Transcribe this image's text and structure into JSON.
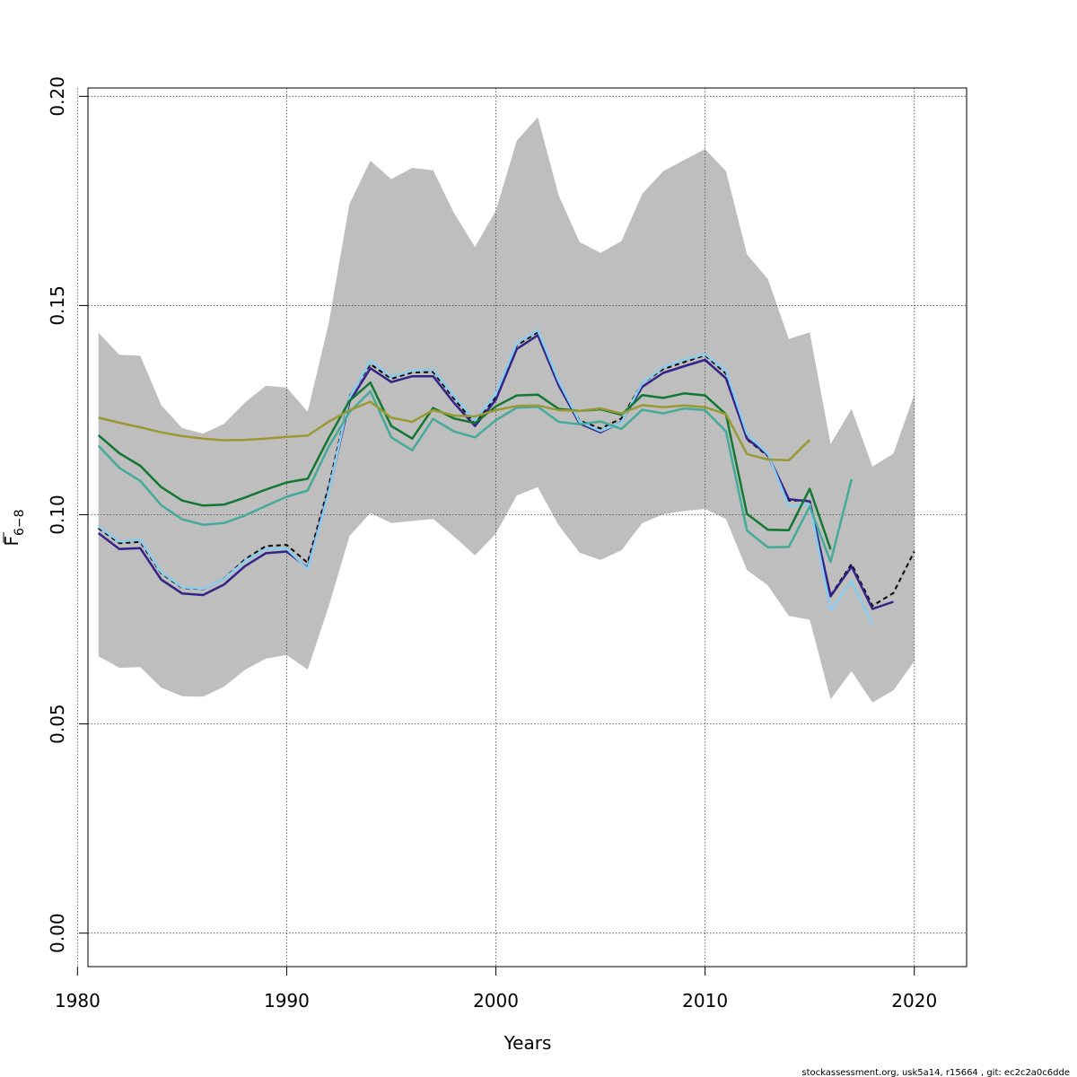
{
  "chart_data": {
    "type": "line",
    "xlabel": "Years",
    "ylabel": {
      "base": "F",
      "subscript": "6−8"
    },
    "xlim": [
      1980.5,
      2022.5
    ],
    "ylim": [
      -0.008,
      0.202
    ],
    "xticks": [
      1980,
      1990,
      2000,
      2010,
      2020
    ],
    "yticks": [
      0.0,
      0.05,
      0.1,
      0.15,
      0.2
    ],
    "xtick_labels": [
      "1980",
      "1990",
      "2000",
      "2010",
      "2020"
    ],
    "ytick_labels": [
      "0.00",
      "0.05",
      "0.10",
      "0.15",
      "0.20"
    ],
    "grid": "dotted",
    "confidence_band": {
      "color": "#bebebe",
      "x": [
        1981,
        1982,
        1983,
        1984,
        1985,
        1986,
        1987,
        1988,
        1989,
        1990,
        1991,
        1992,
        1993,
        1994,
        1995,
        1996,
        1997,
        1998,
        1999,
        2000,
        2001,
        2002,
        2003,
        2004,
        2005,
        2006,
        2007,
        2008,
        2009,
        2010,
        2011,
        2012,
        2013,
        2014,
        2015,
        2016,
        2017,
        2018,
        2019,
        2020
      ],
      "upper": [
        0.1435,
        0.1382,
        0.138,
        0.1262,
        0.1207,
        0.1194,
        0.1217,
        0.1268,
        0.1308,
        0.1304,
        0.1246,
        0.1456,
        0.1743,
        0.1846,
        0.1802,
        0.1829,
        0.1823,
        0.1721,
        0.164,
        0.1727,
        0.1894,
        0.195,
        0.1763,
        0.1652,
        0.1626,
        0.1654,
        0.1767,
        0.1821,
        0.1848,
        0.1874,
        0.1821,
        0.1622,
        0.1563,
        0.142,
        0.1436,
        0.1169,
        0.1253,
        0.1115,
        0.1146,
        0.1287
      ],
      "lower": [
        0.0662,
        0.0634,
        0.0636,
        0.0587,
        0.0566,
        0.0565,
        0.0589,
        0.0629,
        0.0656,
        0.0665,
        0.063,
        0.078,
        0.0949,
        0.1004,
        0.098,
        0.0985,
        0.099,
        0.0948,
        0.0903,
        0.0955,
        0.1046,
        0.1066,
        0.0975,
        0.0909,
        0.0892,
        0.0915,
        0.098,
        0.1001,
        0.1009,
        0.1014,
        0.099,
        0.0868,
        0.0831,
        0.0758,
        0.0749,
        0.0559,
        0.0626,
        0.0551,
        0.058,
        0.065
      ]
    },
    "series": [
      {
        "color": "#b8b8b8",
        "style": "solid",
        "width": 3,
        "x": [
          1981,
          1982,
          1983,
          1984,
          1985,
          1986,
          1987,
          1988,
          1989,
          1990,
          1991,
          1992,
          1993,
          1994,
          1995,
          1996,
          1997,
          1998,
          1999,
          2000,
          2001,
          2002,
          2003,
          2004,
          2005,
          2006,
          2007,
          2008,
          2009,
          2010,
          2011,
          2012,
          2013,
          2014,
          2015,
          2016,
          2017,
          2018,
          2019,
          2020
        ],
        "values": [
          0.0968,
          0.0932,
          0.0935,
          0.086,
          0.0825,
          0.0822,
          0.0847,
          0.0893,
          0.0925,
          0.0928,
          0.0885,
          0.1067,
          0.1283,
          0.136,
          0.1325,
          0.134,
          0.1341,
          0.1277,
          0.1218,
          0.1282,
          0.1405,
          0.1436,
          0.1315,
          0.1225,
          0.1206,
          0.123,
          0.1315,
          0.1348,
          0.1365,
          0.1381,
          0.1337,
          0.118,
          0.114,
          0.1034,
          0.1034,
          0.0807,
          0.0882,
          0.0782,
          0.0813,
          0.0912
        ]
      },
      {
        "color": "#000000",
        "style": "dashed",
        "width": 2,
        "x": [
          1981,
          1982,
          1983,
          1984,
          1985,
          1986,
          1987,
          1988,
          1989,
          1990,
          1991,
          1992,
          1993,
          1994,
          1995,
          1996,
          1997,
          1998,
          1999,
          2000,
          2001,
          2002,
          2003,
          2004,
          2005,
          2006,
          2007,
          2008,
          2009,
          2010,
          2011,
          2012,
          2013,
          2014,
          2015,
          2016,
          2017,
          2018,
          2019,
          2020
        ],
        "values": [
          0.0968,
          0.0932,
          0.0935,
          0.086,
          0.0825,
          0.0822,
          0.0847,
          0.0893,
          0.0925,
          0.0928,
          0.0885,
          0.1067,
          0.1283,
          0.136,
          0.1325,
          0.134,
          0.1341,
          0.1277,
          0.1218,
          0.1282,
          0.1405,
          0.1436,
          0.1315,
          0.1225,
          0.1206,
          0.123,
          0.1315,
          0.1348,
          0.1365,
          0.1381,
          0.1337,
          0.118,
          0.114,
          0.1034,
          0.1034,
          0.0807,
          0.0882,
          0.0782,
          0.0813,
          0.0912
        ]
      },
      {
        "color": "#332288",
        "style": "solid",
        "width": 2.5,
        "x": [
          1981,
          1982,
          1983,
          1984,
          1985,
          1986,
          1987,
          1988,
          1989,
          1990,
          1991,
          1992,
          1993,
          1994,
          1995,
          1996,
          1997,
          1998,
          1999,
          2000,
          2001,
          2002,
          2003,
          2004,
          2005,
          2006,
          2007,
          2008,
          2009,
          2010,
          2011,
          2012,
          2013,
          2014,
          2015,
          2016,
          2017,
          2018,
          2019
        ],
        "values": [
          0.0956,
          0.0918,
          0.092,
          0.0845,
          0.0812,
          0.0808,
          0.0833,
          0.0877,
          0.0908,
          0.0912,
          0.0873,
          0.1055,
          0.127,
          0.135,
          0.1317,
          0.1331,
          0.1331,
          0.1267,
          0.1212,
          0.1275,
          0.1396,
          0.1429,
          0.1309,
          0.1218,
          0.1197,
          0.1222,
          0.1306,
          0.1339,
          0.1355,
          0.137,
          0.1326,
          0.1182,
          0.1143,
          0.1037,
          0.1032,
          0.0805,
          0.0876,
          0.0775,
          0.0792
        ]
      },
      {
        "color": "#88ccee",
        "style": "solid",
        "width": 2.5,
        "x": [
          1981,
          1982,
          1983,
          1984,
          1985,
          1986,
          1987,
          1988,
          1989,
          1990,
          1991,
          1992,
          1993,
          1994,
          1995,
          1996,
          1997,
          1998,
          1999,
          2000,
          2001,
          2002,
          2003,
          2004,
          2005,
          2006,
          2007,
          2008,
          2009,
          2010,
          2011,
          2012,
          2013,
          2014,
          2015,
          2016,
          2017,
          2018
        ],
        "values": [
          0.0972,
          0.0936,
          0.094,
          0.0863,
          0.0827,
          0.0823,
          0.0846,
          0.0889,
          0.0919,
          0.0919,
          0.087,
          0.1052,
          0.128,
          0.1368,
          0.133,
          0.1344,
          0.1347,
          0.1284,
          0.1225,
          0.1289,
          0.141,
          0.1441,
          0.1319,
          0.1222,
          0.12,
          0.1221,
          0.1315,
          0.1353,
          0.137,
          0.1384,
          0.1344,
          0.1193,
          0.1145,
          0.1021,
          0.1025,
          0.0772,
          0.0842,
          0.0738
        ]
      },
      {
        "color": "#117733",
        "style": "solid",
        "width": 2.5,
        "x": [
          1981,
          1982,
          1983,
          1984,
          1985,
          1986,
          1987,
          1988,
          1989,
          1990,
          1991,
          1992,
          1993,
          1994,
          1995,
          1996,
          1997,
          1998,
          1999,
          2000,
          2001,
          2002,
          2003,
          2004,
          2005,
          2006,
          2007,
          2008,
          2009,
          2010,
          2011,
          2012,
          2013,
          2014,
          2015,
          2016
        ],
        "values": [
          0.119,
          0.1147,
          0.1117,
          0.1066,
          0.1034,
          0.1022,
          0.1024,
          0.1041,
          0.106,
          0.1077,
          0.1086,
          0.1183,
          0.1272,
          0.1316,
          0.1212,
          0.1182,
          0.1255,
          0.123,
          0.1219,
          0.1259,
          0.1285,
          0.1287,
          0.1253,
          0.1248,
          0.1252,
          0.1239,
          0.1286,
          0.1279,
          0.129,
          0.1285,
          0.124,
          0.1002,
          0.0964,
          0.0963,
          0.1062,
          0.0917
        ]
      },
      {
        "color": "#44aa99",
        "style": "solid",
        "width": 2.5,
        "x": [
          1981,
          1982,
          1983,
          1984,
          1985,
          1986,
          1987,
          1988,
          1989,
          1990,
          1991,
          1992,
          1993,
          1994,
          1995,
          1996,
          1997,
          1998,
          1999,
          2000,
          2001,
          2002,
          2003,
          2004,
          2005,
          2006,
          2007,
          2008,
          2009,
          2010,
          2011,
          2012,
          2013,
          2014,
          2015,
          2016,
          2017
        ],
        "values": [
          0.1165,
          0.1112,
          0.1081,
          0.1023,
          0.0989,
          0.0976,
          0.098,
          0.0998,
          0.1021,
          0.1043,
          0.1058,
          0.1162,
          0.1245,
          0.1295,
          0.1185,
          0.1154,
          0.1229,
          0.1199,
          0.1185,
          0.1226,
          0.1256,
          0.1258,
          0.1222,
          0.1216,
          0.1223,
          0.1205,
          0.1251,
          0.1242,
          0.1254,
          0.125,
          0.1199,
          0.0962,
          0.0922,
          0.0923,
          0.102,
          0.0887,
          0.1085
        ]
      },
      {
        "color": "#999933",
        "style": "solid",
        "width": 2.5,
        "x": [
          1981,
          1982,
          1983,
          1984,
          1985,
          1986,
          1987,
          1988,
          1989,
          1990,
          1991,
          1992,
          1993,
          1994,
          1995,
          1996,
          1997,
          1998,
          1999,
          2000,
          2001,
          2002,
          2003,
          2004,
          2005,
          2006,
          2007,
          2008,
          2009,
          2010,
          2011,
          2012,
          2013,
          2014,
          2015
        ],
        "values": [
          0.1232,
          0.122,
          0.1209,
          0.1197,
          0.1188,
          0.1182,
          0.1178,
          0.1179,
          0.1182,
          0.1186,
          0.1189,
          0.1222,
          0.125,
          0.127,
          0.1232,
          0.1222,
          0.125,
          0.1237,
          0.1235,
          0.125,
          0.126,
          0.1261,
          0.125,
          0.1248,
          0.1254,
          0.1242,
          0.1262,
          0.1257,
          0.1261,
          0.1257,
          0.124,
          0.1145,
          0.1132,
          0.113,
          0.1179
        ]
      }
    ]
  },
  "footer": "stockassessment.org, usk5a14, r15664 , git: ec2c2a0c6dde"
}
